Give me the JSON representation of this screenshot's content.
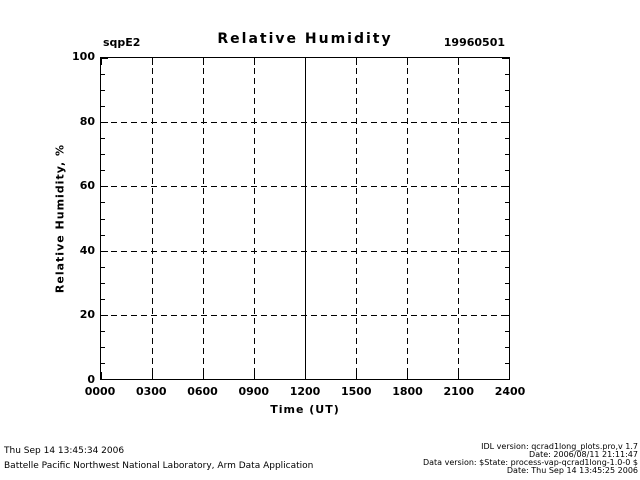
{
  "header": {
    "site_label": "sqpE2",
    "title": "Relative Humidity",
    "date_label": "19960501"
  },
  "chart_data": {
    "type": "line",
    "title": "Relative Humidity",
    "xlabel": "Time (UT)",
    "ylabel": "Relative Humidity, %",
    "xlim": [
      0,
      2400
    ],
    "ylim": [
      0,
      100
    ],
    "x_tick_labels": [
      "0000",
      "0300",
      "0600",
      "0900",
      "1200",
      "1500",
      "1800",
      "2100",
      "2400"
    ],
    "x_tick_values": [
      0,
      300,
      600,
      900,
      1200,
      1500,
      1800,
      2100,
      2400
    ],
    "y_tick_values": [
      0,
      20,
      40,
      60,
      80,
      100
    ],
    "y_minor_tick_step": 5,
    "grid": "dashed",
    "solid_vline_x": 1200,
    "legend": "none",
    "series": []
  },
  "footer": {
    "left_lines": [
      "Thu Sep 14 13:45:34 2006",
      "Battelle Pacific Northwest National Laboratory, Arm Data Application"
    ],
    "right_lines": [
      "IDL version: qcrad1long_plots.pro,v 1.7",
      "Date: 2006/08/11 21:11:47",
      "Data version: $State: process-vap-qcrad1long-1.0-0 $",
      "Date: Thu Sep 14 13:45:25 2006"
    ]
  },
  "colors": {
    "foreground": "#000000",
    "background": "#ffffff"
  }
}
